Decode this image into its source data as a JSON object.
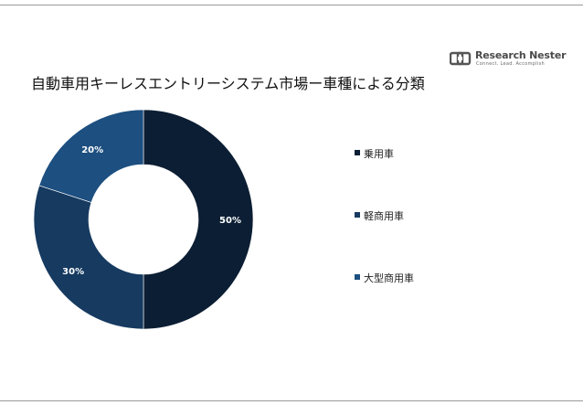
{
  "logo": {
    "name": "Research Nester",
    "tagline": "Connect. Lead. Accomplish"
  },
  "chart_data": {
    "type": "pie",
    "variant": "donut",
    "title": "自動車用キーレスエントリーシステム市場ー車種による分類",
    "categories": [
      "乗用車",
      "軽商用車",
      "大型商用車"
    ],
    "values": [
      50,
      30,
      20
    ],
    "unit": "%",
    "data_labels": [
      "50%",
      "30%",
      "20%"
    ],
    "colors": [
      "#0c1e33",
      "#163a60",
      "#1d4f80"
    ],
    "legend_position": "right",
    "label_color": "#ffffff"
  }
}
